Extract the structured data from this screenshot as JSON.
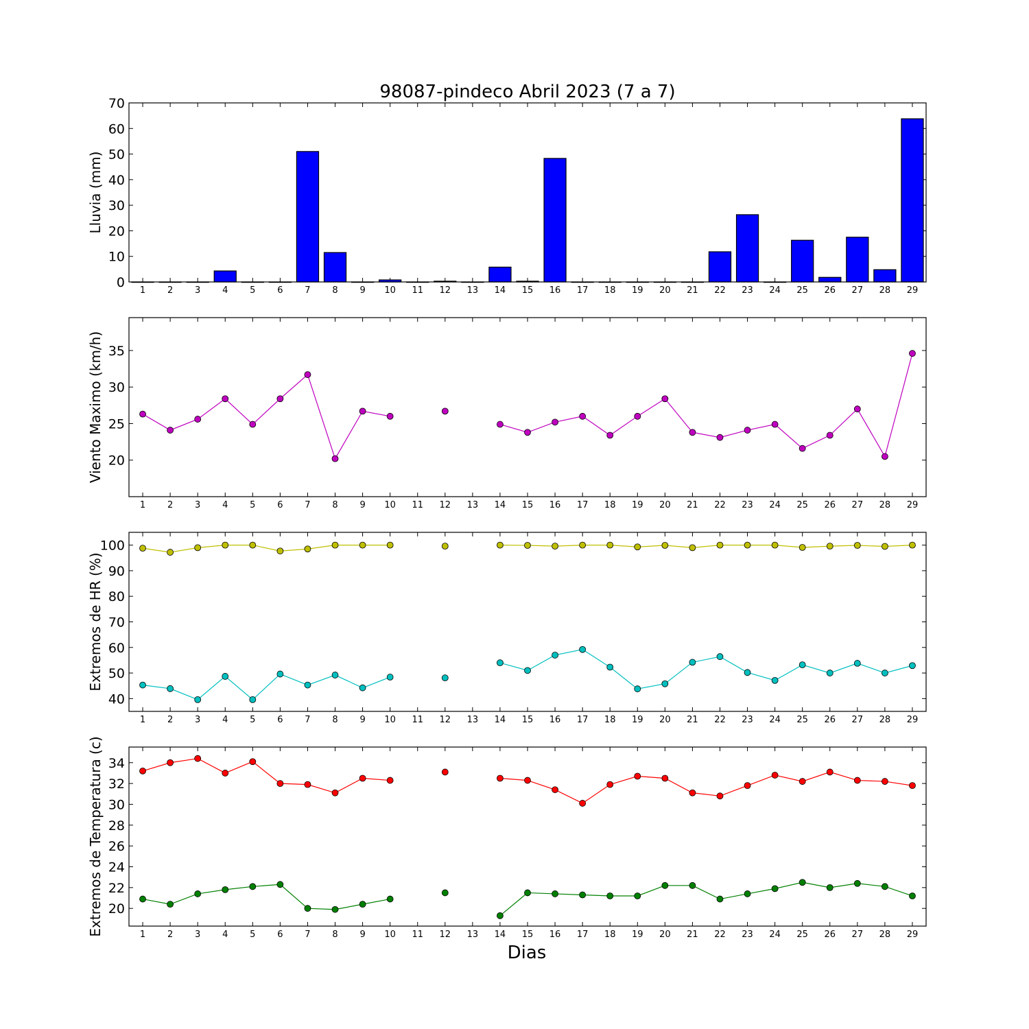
{
  "title": "98087-pindeco Abril 2023  (7 a 7)",
  "xlabel": "Dias",
  "days": [
    1,
    2,
    3,
    4,
    5,
    6,
    7,
    8,
    9,
    10,
    11,
    12,
    13,
    14,
    15,
    16,
    17,
    18,
    19,
    20,
    21,
    22,
    23,
    24,
    25,
    26,
    27,
    28,
    29
  ],
  "chart_data": [
    {
      "type": "bar",
      "ylabel": "Lluvia (mm)",
      "ylim": [
        0,
        70
      ],
      "yticks": [
        0,
        10,
        20,
        30,
        40,
        50,
        60,
        70
      ],
      "categories": [
        1,
        2,
        3,
        4,
        5,
        6,
        7,
        8,
        9,
        10,
        11,
        12,
        13,
        14,
        15,
        16,
        17,
        18,
        19,
        20,
        21,
        22,
        23,
        24,
        25,
        26,
        27,
        28,
        29
      ],
      "series": [
        {
          "color": "#0000ff",
          "values": [
            0,
            0,
            0,
            4.3,
            0,
            0,
            51,
            11.5,
            0,
            0.8,
            0,
            0.3,
            0,
            5.8,
            0.3,
            48.3,
            0,
            0,
            0,
            0,
            0,
            11.8,
            26.3,
            0,
            16.3,
            1.8,
            17.5,
            4.8,
            63.8
          ]
        }
      ]
    },
    {
      "type": "line",
      "ylabel": "Viento Maximo (km/h)",
      "ylim": [
        15,
        39.5
      ],
      "yticks": [
        20,
        25,
        30,
        35
      ],
      "x": [
        1,
        2,
        3,
        4,
        5,
        6,
        7,
        8,
        9,
        10,
        11,
        12,
        13,
        14,
        15,
        16,
        17,
        18,
        19,
        20,
        21,
        22,
        23,
        24,
        25,
        26,
        27,
        28,
        29
      ],
      "series": [
        {
          "color": "#bf00bf",
          "values": [
            26.3,
            24.1,
            25.6,
            28.4,
            24.9,
            28.4,
            31.7,
            20.2,
            26.7,
            26,
            null,
            26.7,
            null,
            24.9,
            23.8,
            25.2,
            26,
            23.4,
            26,
            28.4,
            23.8,
            23.1,
            24.1,
            24.9,
            21.6,
            23.4,
            27,
            20.5,
            34.6
          ]
        }
      ]
    },
    {
      "type": "line",
      "ylabel": "Extremos de HR (%)",
      "ylim": [
        35,
        105
      ],
      "yticks": [
        40,
        50,
        60,
        70,
        80,
        90,
        100
      ],
      "x": [
        1,
        2,
        3,
        4,
        5,
        6,
        7,
        8,
        9,
        10,
        11,
        12,
        13,
        14,
        15,
        16,
        17,
        18,
        19,
        20,
        21,
        22,
        23,
        24,
        25,
        26,
        27,
        28,
        29
      ],
      "series": [
        {
          "color": "#bfbf00",
          "values": [
            98.8,
            97.2,
            99,
            100,
            100,
            97.7,
            98.5,
            100,
            100,
            100,
            null,
            99.6,
            null,
            100,
            99.9,
            99.6,
            100,
            100,
            99.3,
            99.9,
            99,
            100,
            100,
            100,
            99.1,
            99.6,
            99.9,
            99.5,
            100
          ]
        },
        {
          "color": "#00bfbf",
          "values": [
            45.3,
            43.9,
            39.6,
            48.7,
            39.6,
            49.6,
            45.3,
            49.2,
            44.2,
            48.4,
            null,
            48.1,
            null,
            54,
            51,
            57,
            59.2,
            52.3,
            43.8,
            45.8,
            54.2,
            56.4,
            50.2,
            47.1,
            53.2,
            50,
            53.8,
            50,
            52.9
          ]
        }
      ]
    },
    {
      "type": "line",
      "ylabel": "Extremos de Temperatura (c)",
      "ylim": [
        18.3,
        35.5
      ],
      "yticks": [
        20,
        22,
        24,
        26,
        28,
        30,
        32,
        34
      ],
      "x": [
        1,
        2,
        3,
        4,
        5,
        6,
        7,
        8,
        9,
        10,
        11,
        12,
        13,
        14,
        15,
        16,
        17,
        18,
        19,
        20,
        21,
        22,
        23,
        24,
        25,
        26,
        27,
        28,
        29
      ],
      "series": [
        {
          "color": "#ff0000",
          "values": [
            33.2,
            34,
            34.4,
            33,
            34.1,
            32,
            31.9,
            31.1,
            32.5,
            32.3,
            null,
            33.1,
            null,
            32.5,
            32.3,
            31.4,
            30.1,
            31.9,
            32.7,
            32.5,
            31.1,
            30.8,
            31.8,
            32.8,
            32.2,
            33.1,
            32.3,
            32.2,
            31.8
          ]
        },
        {
          "color": "#008000",
          "values": [
            20.9,
            20.4,
            21.4,
            21.8,
            22.1,
            22.3,
            20,
            19.9,
            20.4,
            20.9,
            null,
            21.5,
            null,
            19.3,
            21.5,
            21.4,
            21.3,
            21.2,
            21.2,
            22.2,
            22.2,
            20.9,
            21.4,
            21.9,
            22.5,
            22,
            22.4,
            22.1,
            21.2
          ]
        }
      ]
    }
  ]
}
